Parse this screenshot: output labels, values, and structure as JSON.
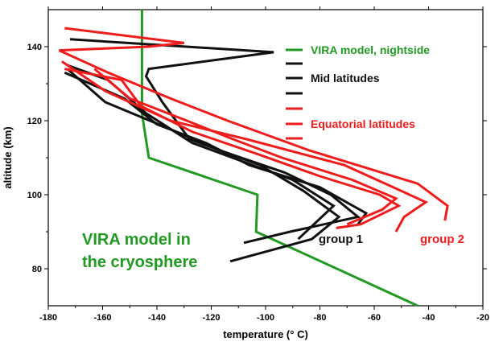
{
  "chart_data": {
    "type": "line",
    "xlabel": "temperature (° C)",
    "ylabel": "altitude (km)",
    "xlim": [
      -180,
      -20
    ],
    "ylim": [
      70,
      150
    ],
    "grid": false,
    "x_ticks": [
      -180,
      -160,
      -140,
      -120,
      -100,
      -80,
      -60,
      -40,
      -20
    ],
    "y_ticks": [
      80,
      100,
      120,
      140
    ],
    "colors": {
      "green": "#229922",
      "black": "#111111",
      "red": "#ee1c1c"
    },
    "legend": [
      {
        "label": "VIRA model, nightside",
        "color": "#229922"
      },
      {
        "label": "",
        "color": "#111111"
      },
      {
        "label": "Mid latitudes",
        "color": "#111111"
      },
      {
        "label": "",
        "color": "#111111"
      },
      {
        "label": "",
        "color": "#ee1c1c"
      },
      {
        "label": "Equatorial latitudes",
        "color": "#ee1c1c"
      },
      {
        "label": "",
        "color": "#ee1c1c"
      }
    ],
    "series": [
      {
        "color": "#229922",
        "points": [
          [
            -145.5,
            150
          ],
          [
            -145.5,
            122
          ],
          [
            -143,
            110
          ],
          [
            -103,
            100
          ],
          [
            -103.5,
            90
          ],
          [
            -44,
            70
          ]
        ]
      },
      {
        "color": "#111111",
        "points": [
          [
            -172,
            142
          ],
          [
            -97,
            138.5
          ],
          [
            -143,
            134
          ],
          [
            -144,
            132
          ],
          [
            -138,
            125
          ],
          [
            -131,
            118
          ],
          [
            -128,
            115
          ],
          [
            -102,
            108
          ],
          [
            -86,
            101
          ],
          [
            -73,
            94
          ],
          [
            -83,
            88
          ],
          [
            -113,
            82
          ]
        ]
      },
      {
        "color": "#111111",
        "points": [
          [
            -173,
            135
          ],
          [
            -158,
            131
          ],
          [
            -144,
            122
          ],
          [
            -127,
            114
          ],
          [
            -90,
            104
          ],
          [
            -75,
            97
          ],
          [
            -88,
            88
          ]
        ]
      },
      {
        "color": "#111111",
        "points": [
          [
            -173,
            134
          ],
          [
            -159,
            125
          ],
          [
            -136,
            118
          ],
          [
            -117,
            112
          ],
          [
            -93,
            106
          ],
          [
            -76,
            100
          ],
          [
            -66,
            94
          ],
          [
            -91,
            90
          ],
          [
            -108,
            87
          ]
        ]
      },
      {
        "color": "#111111",
        "points": [
          [
            -174,
            133
          ],
          [
            -152,
            126
          ],
          [
            -140,
            119
          ],
          [
            -122,
            114
          ],
          [
            -106,
            108
          ],
          [
            -80,
            102
          ],
          [
            -63,
            95
          ],
          [
            -66,
            92
          ]
        ]
      },
      {
        "color": "#ee1c1c",
        "points": [
          [
            -174,
            145
          ],
          [
            -130,
            141
          ],
          [
            -143,
            140
          ],
          [
            -176,
            139
          ],
          [
            -158,
            133
          ],
          [
            -135,
            126
          ],
          [
            -114,
            120
          ],
          [
            -84,
            112
          ],
          [
            -44,
            103
          ],
          [
            -33,
            97
          ],
          [
            -34,
            93
          ]
        ]
      },
      {
        "color": "#ee1c1c",
        "points": [
          [
            -175,
            136
          ],
          [
            -159,
            128
          ],
          [
            -135,
            120
          ],
          [
            -107,
            115
          ],
          [
            -71,
            108
          ],
          [
            -50,
            101
          ],
          [
            -41,
            98
          ],
          [
            -49,
            94
          ],
          [
            -52,
            90
          ]
        ]
      },
      {
        "color": "#ee1c1c",
        "points": [
          [
            -174,
            134
          ],
          [
            -153,
            131
          ],
          [
            -146,
            124
          ],
          [
            -127,
            117
          ],
          [
            -103,
            111
          ],
          [
            -80,
            105
          ],
          [
            -58,
            100
          ],
          [
            -51,
            97
          ],
          [
            -65,
            92
          ],
          [
            -74,
            91
          ]
        ]
      },
      {
        "color": "#ee1c1c",
        "points": [
          [
            -163,
            134
          ],
          [
            -150,
            126
          ],
          [
            -129,
            120
          ],
          [
            -112,
            115
          ],
          [
            -94,
            110
          ],
          [
            -68,
            104
          ],
          [
            -52,
            99
          ],
          [
            -57,
            96
          ],
          [
            -70,
            92
          ]
        ]
      }
    ],
    "annotations": [
      {
        "text": "VIRA  model in",
        "color": "#229922"
      },
      {
        "text": "the cryosphere",
        "color": "#229922"
      },
      {
        "text": "group 1",
        "color": "#111111"
      },
      {
        "text": "group  2",
        "color": "#ee1c1c"
      }
    ]
  }
}
